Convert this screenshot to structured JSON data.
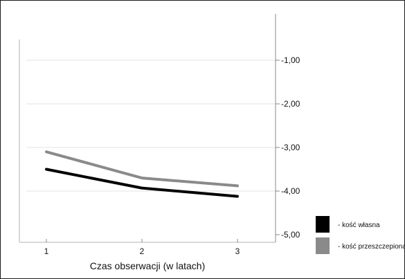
{
  "chart_data": {
    "type": "line",
    "title": "",
    "xlabel": "Czas obserwacji (w latach)",
    "ylabel": "",
    "categories": [
      "1",
      "2",
      "3"
    ],
    "y_ticks": [
      "-1,00",
      "-2,00",
      "-3,00",
      "-4,00",
      "-5,00"
    ],
    "y_tick_values": [
      -1,
      -2,
      -3,
      -4,
      -5
    ],
    "ylim": [
      -5.2,
      0.6
    ],
    "grid": true,
    "y_axis_side": "right",
    "legend_position": "bottom-right",
    "series": [
      {
        "name": "- kość własna",
        "color": "#000000",
        "values": [
          -3.5,
          -3.93,
          -4.12
        ]
      },
      {
        "name": "- kość przeszczepiona",
        "color": "#8a8a8a",
        "values": [
          -3.1,
          -3.7,
          -3.88
        ]
      }
    ]
  }
}
